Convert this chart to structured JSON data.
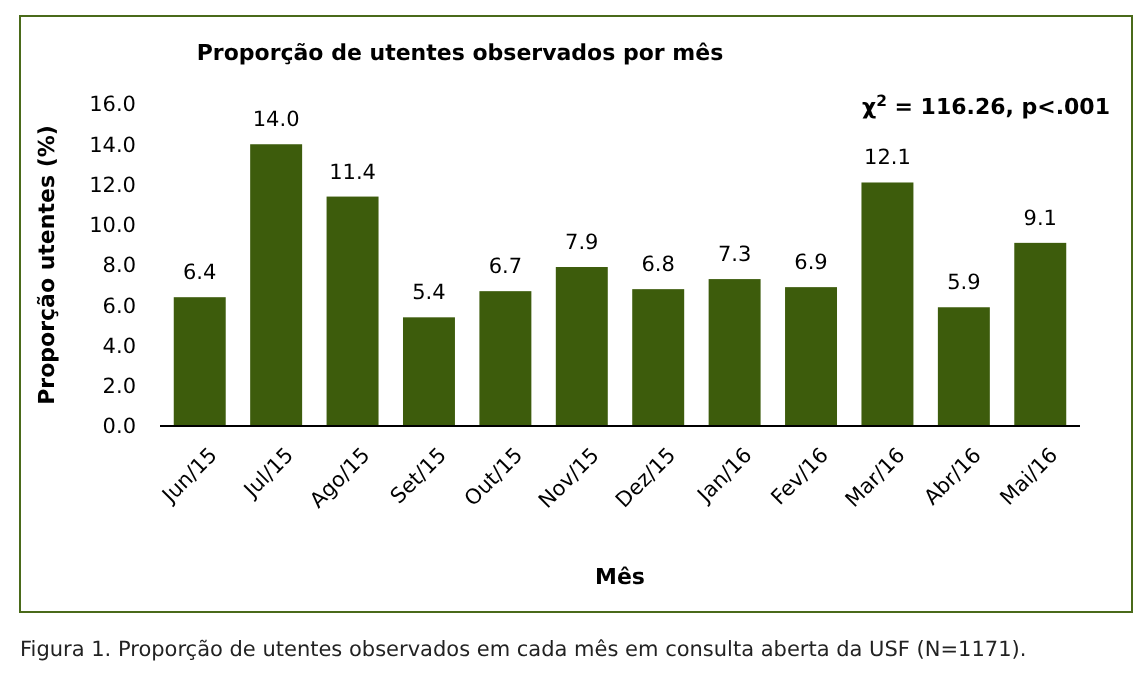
{
  "chart_data": {
    "type": "bar",
    "title": "Proporção de utentes observados por mês",
    "xlabel": "Mês",
    "ylabel": "Proporção utentes (%)",
    "categories": [
      "Jun/15",
      "Jul/15",
      "Ago/15",
      "Set/15",
      "Out/15",
      "Nov/15",
      "Dez/15",
      "Jan/16",
      "Fev/16",
      "Mar/16",
      "Abr/16",
      "Mai/16"
    ],
    "values": [
      6.4,
      14.0,
      11.4,
      5.4,
      6.7,
      7.9,
      6.8,
      7.3,
      6.9,
      12.1,
      5.9,
      9.1
    ],
    "value_labels": [
      "6.4",
      "14.0",
      "11.4",
      "5.4",
      "6.7",
      "7.9",
      "6.8",
      "7.3",
      "6.9",
      "12.1",
      "5.9",
      "9.1"
    ],
    "color": "#3d5c0c",
    "ylim": [
      0,
      16
    ],
    "yticks": [
      {
        "value": 0,
        "label": "0.0"
      },
      {
        "value": 2,
        "label": "2.0"
      },
      {
        "value": 4,
        "label": "4.0"
      },
      {
        "value": 6,
        "label": "6.0"
      },
      {
        "value": 8,
        "label": "8.0"
      },
      {
        "value": 10,
        "label": "10.0"
      },
      {
        "value": 12,
        "label": "12.0"
      },
      {
        "value": 14,
        "label": "14.0"
      },
      {
        "value": 16,
        "label": "16.0"
      }
    ],
    "grid": false,
    "annotations": [
      "χ$^{2}$ = 116.26, p<.001",
      "Figura 1. Proporção de utentes observados em cada mês em consulta aberta da USF (N=1171)."
    ]
  }
}
